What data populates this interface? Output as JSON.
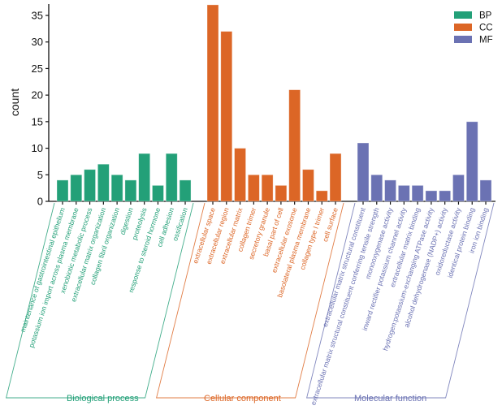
{
  "chart_data": {
    "type": "bar",
    "title": "",
    "xlabel": "",
    "ylabel": "count",
    "ylim": [
      0,
      37
    ],
    "yticks": [
      0,
      5,
      10,
      15,
      20,
      25,
      30,
      35
    ],
    "grid": false,
    "legend": {
      "placement": "top-right",
      "entries": [
        {
          "name": "BP",
          "color": "#23a078"
        },
        {
          "name": "CC",
          "color": "#dc6626"
        },
        {
          "name": "MF",
          "color": "#6b72b3"
        }
      ]
    },
    "groups": [
      {
        "key": "BP",
        "name": "Biological process",
        "color": "#23a078",
        "categories": [
          "maintenance of gastrointestinal epithelium",
          "potassium ion import across plasma membrane",
          "xenobiotic metabolic process",
          "extracellular matrix organization",
          "collagen fibril organization",
          "digestion",
          "proteolysis",
          "response to steroid hormone",
          "cell adhesion",
          "ossification"
        ],
        "values": [
          4,
          5,
          6,
          7,
          5,
          4,
          9,
          3,
          9,
          4
        ]
      },
      {
        "key": "CC",
        "name": "Cellular component",
        "color": "#dc6626",
        "categories": [
          "extracellular space",
          "extracellular region",
          "extracellular matrix",
          "collagen trimer",
          "secretory granule",
          "basal part of cell",
          "extracellular exosome",
          "basolateral plasma membrane",
          "collagen type I trimer",
          "cell surface"
        ],
        "values": [
          37,
          32,
          10,
          5,
          5,
          3,
          21,
          6,
          2,
          9
        ]
      },
      {
        "key": "MF",
        "name": "Molecular function",
        "color": "#6b72b3",
        "categories": [
          "extracellular matrix structural constituent",
          "extracellular matrix structural constituent conferring tensile strength",
          "monooxygenase activity",
          "inward rectifier potassium channel activity",
          "extracellular matrix binding",
          "hydrogen:potassium-exchanging ATPase activity",
          "alcohol dehydrogenase (NADP+) activity",
          "oxidoreductase activity",
          "identical protein binding",
          "iron ion binding"
        ],
        "values": [
          11,
          5,
          4,
          3,
          3,
          2,
          2,
          5,
          15,
          4
        ]
      }
    ]
  }
}
